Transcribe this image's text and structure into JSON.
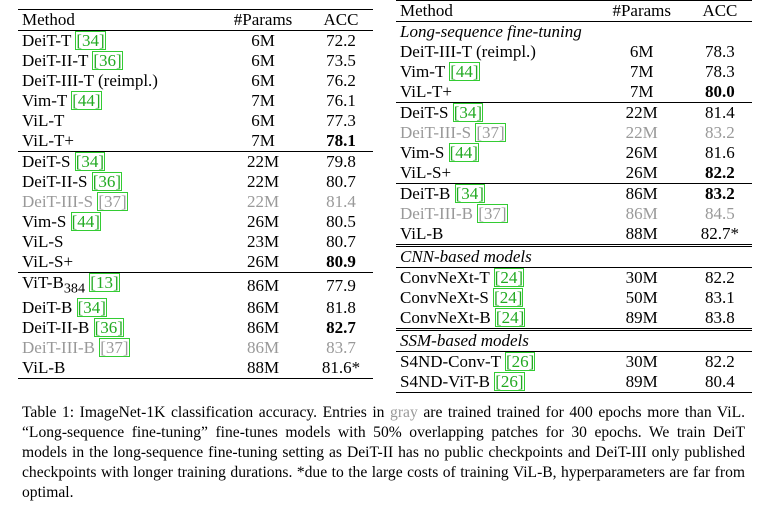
{
  "left": {
    "header": [
      "Method",
      "#Params",
      "ACC"
    ],
    "groups": [
      [
        {
          "method": "DeiT-T",
          "ref": "[34]",
          "params": "6M",
          "acc": "72.2"
        },
        {
          "method": "DeiT-II-T",
          "ref": "[36]",
          "params": "6M",
          "acc": "73.5"
        },
        {
          "method": "DeiT-III-T (reimpl.)",
          "params": "6M",
          "acc": "76.2"
        },
        {
          "method": "Vim-T",
          "ref": "[44]",
          "params": "7M",
          "acc": "76.1"
        },
        {
          "method": "ViL-T",
          "params": "6M",
          "acc": "77.3"
        },
        {
          "method": "ViL-T+",
          "params": "7M",
          "acc": "78.1",
          "bold": true
        }
      ],
      [
        {
          "method": "DeiT-S",
          "ref": "[34]",
          "params": "22M",
          "acc": "79.8"
        },
        {
          "method": "DeiT-II-S",
          "ref": "[36]",
          "params": "22M",
          "acc": "80.7"
        },
        {
          "method": "DeiT-III-S",
          "ref": "[37]",
          "params": "22M",
          "acc": "81.4",
          "gray": true
        },
        {
          "method": "Vim-S",
          "ref": "[44]",
          "params": "26M",
          "acc": "80.5"
        },
        {
          "method": "ViL-S",
          "params": "23M",
          "acc": "80.7"
        },
        {
          "method": "ViL-S+",
          "params": "26M",
          "acc": "80.9",
          "bold": true
        }
      ],
      [
        {
          "method": "ViT-B",
          "sub": "384",
          "ref": "[13]",
          "params": "86M",
          "acc": "77.9"
        },
        {
          "method": "DeiT-B",
          "ref": "[34]",
          "params": "86M",
          "acc": "81.8"
        },
        {
          "method": "DeiT-II-B",
          "ref": "[36]",
          "params": "86M",
          "acc": "82.7",
          "bold": true
        },
        {
          "method": "DeiT-III-B",
          "ref": "[37]",
          "params": "86M",
          "acc": "83.7",
          "gray": true
        },
        {
          "method": "ViL-B",
          "params": "88M",
          "acc": "81.6*"
        }
      ]
    ]
  },
  "right": {
    "header": [
      "Method",
      "#Params",
      "ACC"
    ],
    "sections": [
      {
        "title": "Long-sequence fine-tuning",
        "groups": [
          [
            {
              "method": "DeiT-III-T (reimpl.)",
              "params": "6M",
              "acc": "78.3"
            },
            {
              "method": "Vim-T",
              "ref": "[44]",
              "params": "7M",
              "acc": "78.3"
            },
            {
              "method": "ViL-T+",
              "params": "7M",
              "acc": "80.0",
              "bold": true
            }
          ],
          [
            {
              "method": "DeiT-S",
              "ref": "[34]",
              "params": "22M",
              "acc": "81.4"
            },
            {
              "method": "DeiT-III-S",
              "ref": "[37]",
              "params": "22M",
              "acc": "83.2",
              "gray": true
            },
            {
              "method": "Vim-S",
              "ref": "[44]",
              "params": "26M",
              "acc": "81.6"
            },
            {
              "method": "ViL-S+",
              "params": "26M",
              "acc": "82.2",
              "bold": true
            }
          ],
          [
            {
              "method": "DeiT-B",
              "ref": "[34]",
              "params": "86M",
              "acc": "83.2",
              "bold": true
            },
            {
              "method": "DeiT-III-B",
              "ref": "[37]",
              "params": "86M",
              "acc": "84.5",
              "gray": true
            },
            {
              "method": "ViL-B",
              "params": "88M",
              "acc": "82.7*"
            }
          ]
        ]
      },
      {
        "title": "CNN-based models",
        "groups": [
          [
            {
              "method": "ConvNeXt-T",
              "ref": "[24]",
              "params": "30M",
              "acc": "82.2"
            },
            {
              "method": "ConvNeXt-S",
              "ref": "[24]",
              "params": "50M",
              "acc": "83.1"
            },
            {
              "method": "ConvNeXt-B",
              "ref": "[24]",
              "params": "89M",
              "acc": "83.8"
            }
          ]
        ]
      },
      {
        "title": "SSM-based models",
        "groups": [
          [
            {
              "method": "S4ND-Conv-T",
              "ref": "[26]",
              "params": "30M",
              "acc": "82.2"
            },
            {
              "method": "S4ND-ViT-B",
              "ref": "[26]",
              "params": "89M",
              "acc": "80.4"
            }
          ]
        ]
      }
    ]
  },
  "caption": [
    {
      "text": "Table 1: ImageNet-1K classification accuracy. Entries in "
    },
    {
      "text": "gray",
      "gray": true
    },
    {
      "text": " are trained trained for 400 epochs more than ViL. “Long-sequence fine-tuning” fine-tunes models with 50% overlapping patches for 30 epochs. We train DeiT models in the long-sequence fine-tuning setting as DeiT-II has no public checkpoints and DeiT-III only published checkpoints with longer training durations. *due to the large costs of training ViL-B, hyperparameters are far from optimal."
    }
  ]
}
